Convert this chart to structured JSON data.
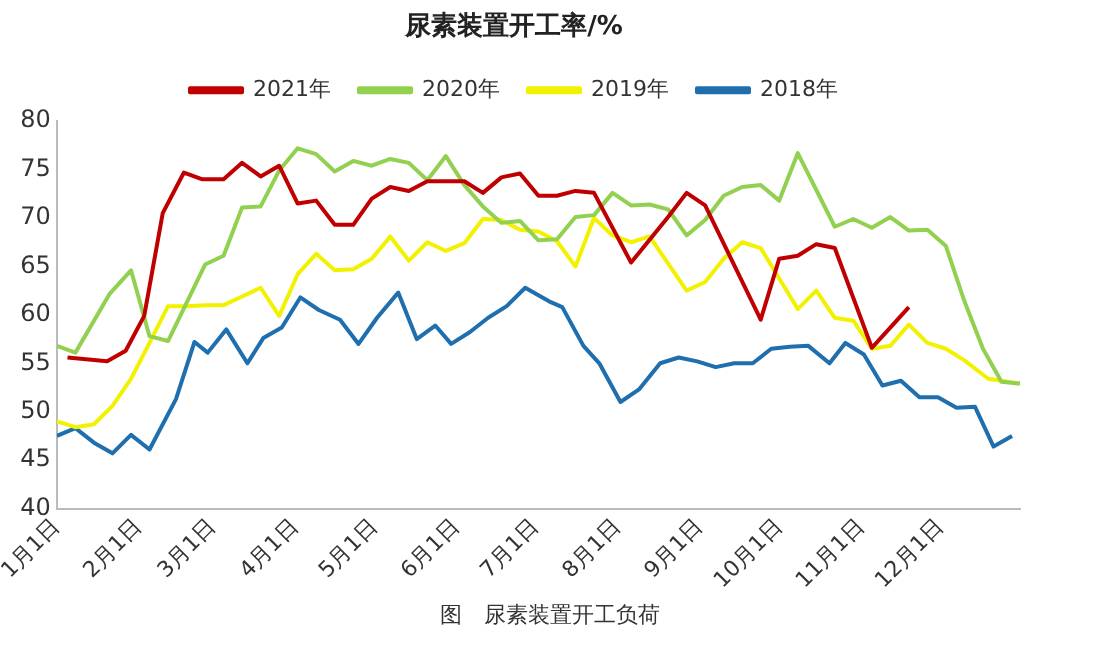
{
  "chart_data": {
    "type": "line",
    "title": "尿素装置开工率/%",
    "xlim": [
      "--01-01",
      "--12-31"
    ],
    "xticks": [
      {
        "value": "--01-01",
        "label": "1月1日"
      },
      {
        "value": "--02-01",
        "label": "2月1日"
      },
      {
        "value": "--03-01",
        "label": "3月1日"
      },
      {
        "value": "--04-01",
        "label": "4月1日"
      },
      {
        "value": "--05-01",
        "label": "5月1日"
      },
      {
        "value": "--06-01",
        "label": "6月1日"
      },
      {
        "value": "--07-01",
        "label": "7月1日"
      },
      {
        "value": "--08-01",
        "label": "8月1日"
      },
      {
        "value": "--09-01",
        "label": "9月1日"
      },
      {
        "value": "--10-01",
        "label": "10月1日"
      },
      {
        "value": "--11-01",
        "label": "11月1日"
      },
      {
        "value": "--12-01",
        "label": "12月1日"
      }
    ],
    "ylim": [
      40,
      80
    ],
    "yticks": [
      40,
      45,
      50,
      55,
      60,
      65,
      70,
      75,
      80
    ],
    "grid": false,
    "legend": "top",
    "marker": "none",
    "line_style": "solid",
    "annotations": [
      "图　尿素装置开工负荷"
    ],
    "series": [
      {
        "name": "2021年",
        "color": "#c00000",
        "x": [
          "--01-05",
          "--01-20",
          "--01-27",
          "--02-03",
          "--02-10",
          "--02-18",
          "--02-25",
          "--03-05",
          "--03-12",
          "--03-19",
          "--03-26",
          "--04-02",
          "--04-09",
          "--04-16",
          "--04-23",
          "--04-30",
          "--05-07",
          "--05-14",
          "--05-21",
          "--06-04",
          "--06-11",
          "--06-18",
          "--06-25",
          "--07-02",
          "--07-09",
          "--07-16",
          "--07-23",
          "--08-06",
          "--08-20",
          "--08-27",
          "--09-03",
          "--09-24",
          "--10-01",
          "--10-08",
          "--10-15",
          "--10-22",
          "--11-05",
          "--11-19"
        ],
        "values": [
          55.6,
          55.2,
          56.3,
          59.9,
          70.5,
          74.7,
          74.0,
          74.0,
          75.7,
          74.3,
          75.4,
          71.5,
          71.8,
          69.3,
          69.3,
          72.0,
          73.2,
          72.8,
          73.8,
          73.8,
          72.6,
          74.2,
          74.6,
          72.3,
          72.3,
          72.8,
          72.6,
          65.4,
          70.1,
          72.6,
          71.3,
          59.5,
          65.8,
          66.1,
          67.3,
          66.9,
          56.6,
          60.8
        ]
      },
      {
        "name": "2020年",
        "color": "#92d050",
        "x": [
          "--01-01",
          "--01-08",
          "--01-21",
          "--01-29",
          "--02-05",
          "--02-12",
          "--02-26",
          "--03-05",
          "--03-12",
          "--03-19",
          "--03-26",
          "--04-02",
          "--04-09",
          "--04-16",
          "--04-23",
          "--04-30",
          "--05-07",
          "--05-14",
          "--05-21",
          "--05-28",
          "--06-04",
          "--06-11",
          "--06-18",
          "--06-25",
          "--07-02",
          "--07-09",
          "--07-16",
          "--07-23",
          "--07-30",
          "--08-06",
          "--08-13",
          "--08-20",
          "--08-27",
          "--09-03",
          "--09-10",
          "--09-17",
          "--09-24",
          "--10-01",
          "--10-08",
          "--10-22",
          "--10-29",
          "--11-05",
          "--11-12",
          "--11-19",
          "--11-26",
          "--12-03",
          "--12-10",
          "--12-17",
          "--12-24",
          "--12-31"
        ],
        "values": [
          56.8,
          56.1,
          62.2,
          64.6,
          57.8,
          57.3,
          65.2,
          66.1,
          71.1,
          71.2,
          74.9,
          77.2,
          76.6,
          74.8,
          75.9,
          75.4,
          76.1,
          75.7,
          73.9,
          76.4,
          73.4,
          71.2,
          69.5,
          69.7,
          67.7,
          67.8,
          70.1,
          70.3,
          72.6,
          71.3,
          71.4,
          70.9,
          68.2,
          69.8,
          72.3,
          73.2,
          73.4,
          71.8,
          76.7,
          69.1,
          69.9,
          69.0,
          70.1,
          68.7,
          68.8,
          67.1,
          61.4,
          56.5,
          53.1,
          52.9
        ]
      },
      {
        "name": "2019年",
        "color": "#f2f200",
        "x": [
          "--01-01",
          "--01-08",
          "--01-15",
          "--01-22",
          "--01-29",
          "--02-05",
          "--02-12",
          "--02-19",
          "--02-26",
          "--03-05",
          "--03-12",
          "--03-19",
          "--03-26",
          "--04-02",
          "--04-09",
          "--04-16",
          "--04-23",
          "--04-30",
          "--05-07",
          "--05-14",
          "--05-21",
          "--05-28",
          "--06-04",
          "--06-11",
          "--06-18",
          "--06-25",
          "--07-02",
          "--07-09",
          "--07-16",
          "--07-23",
          "--07-30",
          "--08-06",
          "--08-13",
          "--08-27",
          "--09-03",
          "--09-10",
          "--09-17",
          "--09-24",
          "--10-08",
          "--10-15",
          "--10-22",
          "--10-29",
          "--11-05",
          "--11-12",
          "--11-19",
          "--11-26",
          "--12-03",
          "--12-10",
          "--12-19",
          "--12-31"
        ],
        "values": [
          49.0,
          48.4,
          48.7,
          50.6,
          53.4,
          57.1,
          60.9,
          60.9,
          61.0,
          61.0,
          61.9,
          62.8,
          59.9,
          64.2,
          66.3,
          64.6,
          64.7,
          65.8,
          68.1,
          65.6,
          67.5,
          66.6,
          67.4,
          69.9,
          69.8,
          68.8,
          68.6,
          67.6,
          65.0,
          70.0,
          68.2,
          67.5,
          68.1,
          62.5,
          63.4,
          65.8,
          67.5,
          66.9,
          60.6,
          62.5,
          59.7,
          59.4,
          56.5,
          56.8,
          59.0,
          57.1,
          56.5,
          55.3,
          53.4,
          52.9
        ]
      },
      {
        "name": "2018年",
        "color": "#1f6fae",
        "x": [
          "--01-01",
          "--01-08",
          "--01-15",
          "--01-22",
          "--01-29",
          "--02-05",
          "--02-15",
          "--02-22",
          "--02-27",
          "--03-06",
          "--03-14",
          "--03-20",
          "--03-27",
          "--04-03",
          "--04-10",
          "--04-18",
          "--04-25",
          "--05-02",
          "--05-10",
          "--05-17",
          "--05-24",
          "--05-30",
          "--06-06",
          "--06-13",
          "--06-20",
          "--06-27",
          "--07-06",
          "--07-11",
          "--07-19",
          "--07-25",
          "--08-02",
          "--08-09",
          "--08-17",
          "--08-24",
          "--08-31",
          "--09-07",
          "--09-14",
          "--09-21",
          "--09-28",
          "--10-05",
          "--10-12",
          "--10-20",
          "--10-26",
          "--11-02",
          "--11-09",
          "--11-16",
          "--11-23",
          "--11-30",
          "--12-07",
          "--12-14",
          "--12-21",
          "--12-28"
        ],
        "values": [
          47.5,
          48.3,
          46.8,
          45.7,
          47.6,
          46.1,
          51.3,
          57.2,
          56.1,
          58.5,
          55.0,
          57.6,
          58.7,
          61.8,
          60.5,
          59.5,
          57.0,
          59.7,
          62.3,
          57.5,
          58.9,
          57.0,
          58.2,
          59.7,
          60.9,
          62.8,
          61.4,
          60.8,
          56.8,
          55.0,
          51.0,
          52.3,
          55.0,
          55.6,
          55.2,
          54.6,
          55.0,
          55.0,
          56.5,
          56.7,
          56.8,
          55.0,
          57.1,
          55.9,
          52.7,
          53.2,
          51.5,
          51.5,
          50.4,
          50.5,
          46.4,
          47.5
        ]
      }
    ]
  }
}
